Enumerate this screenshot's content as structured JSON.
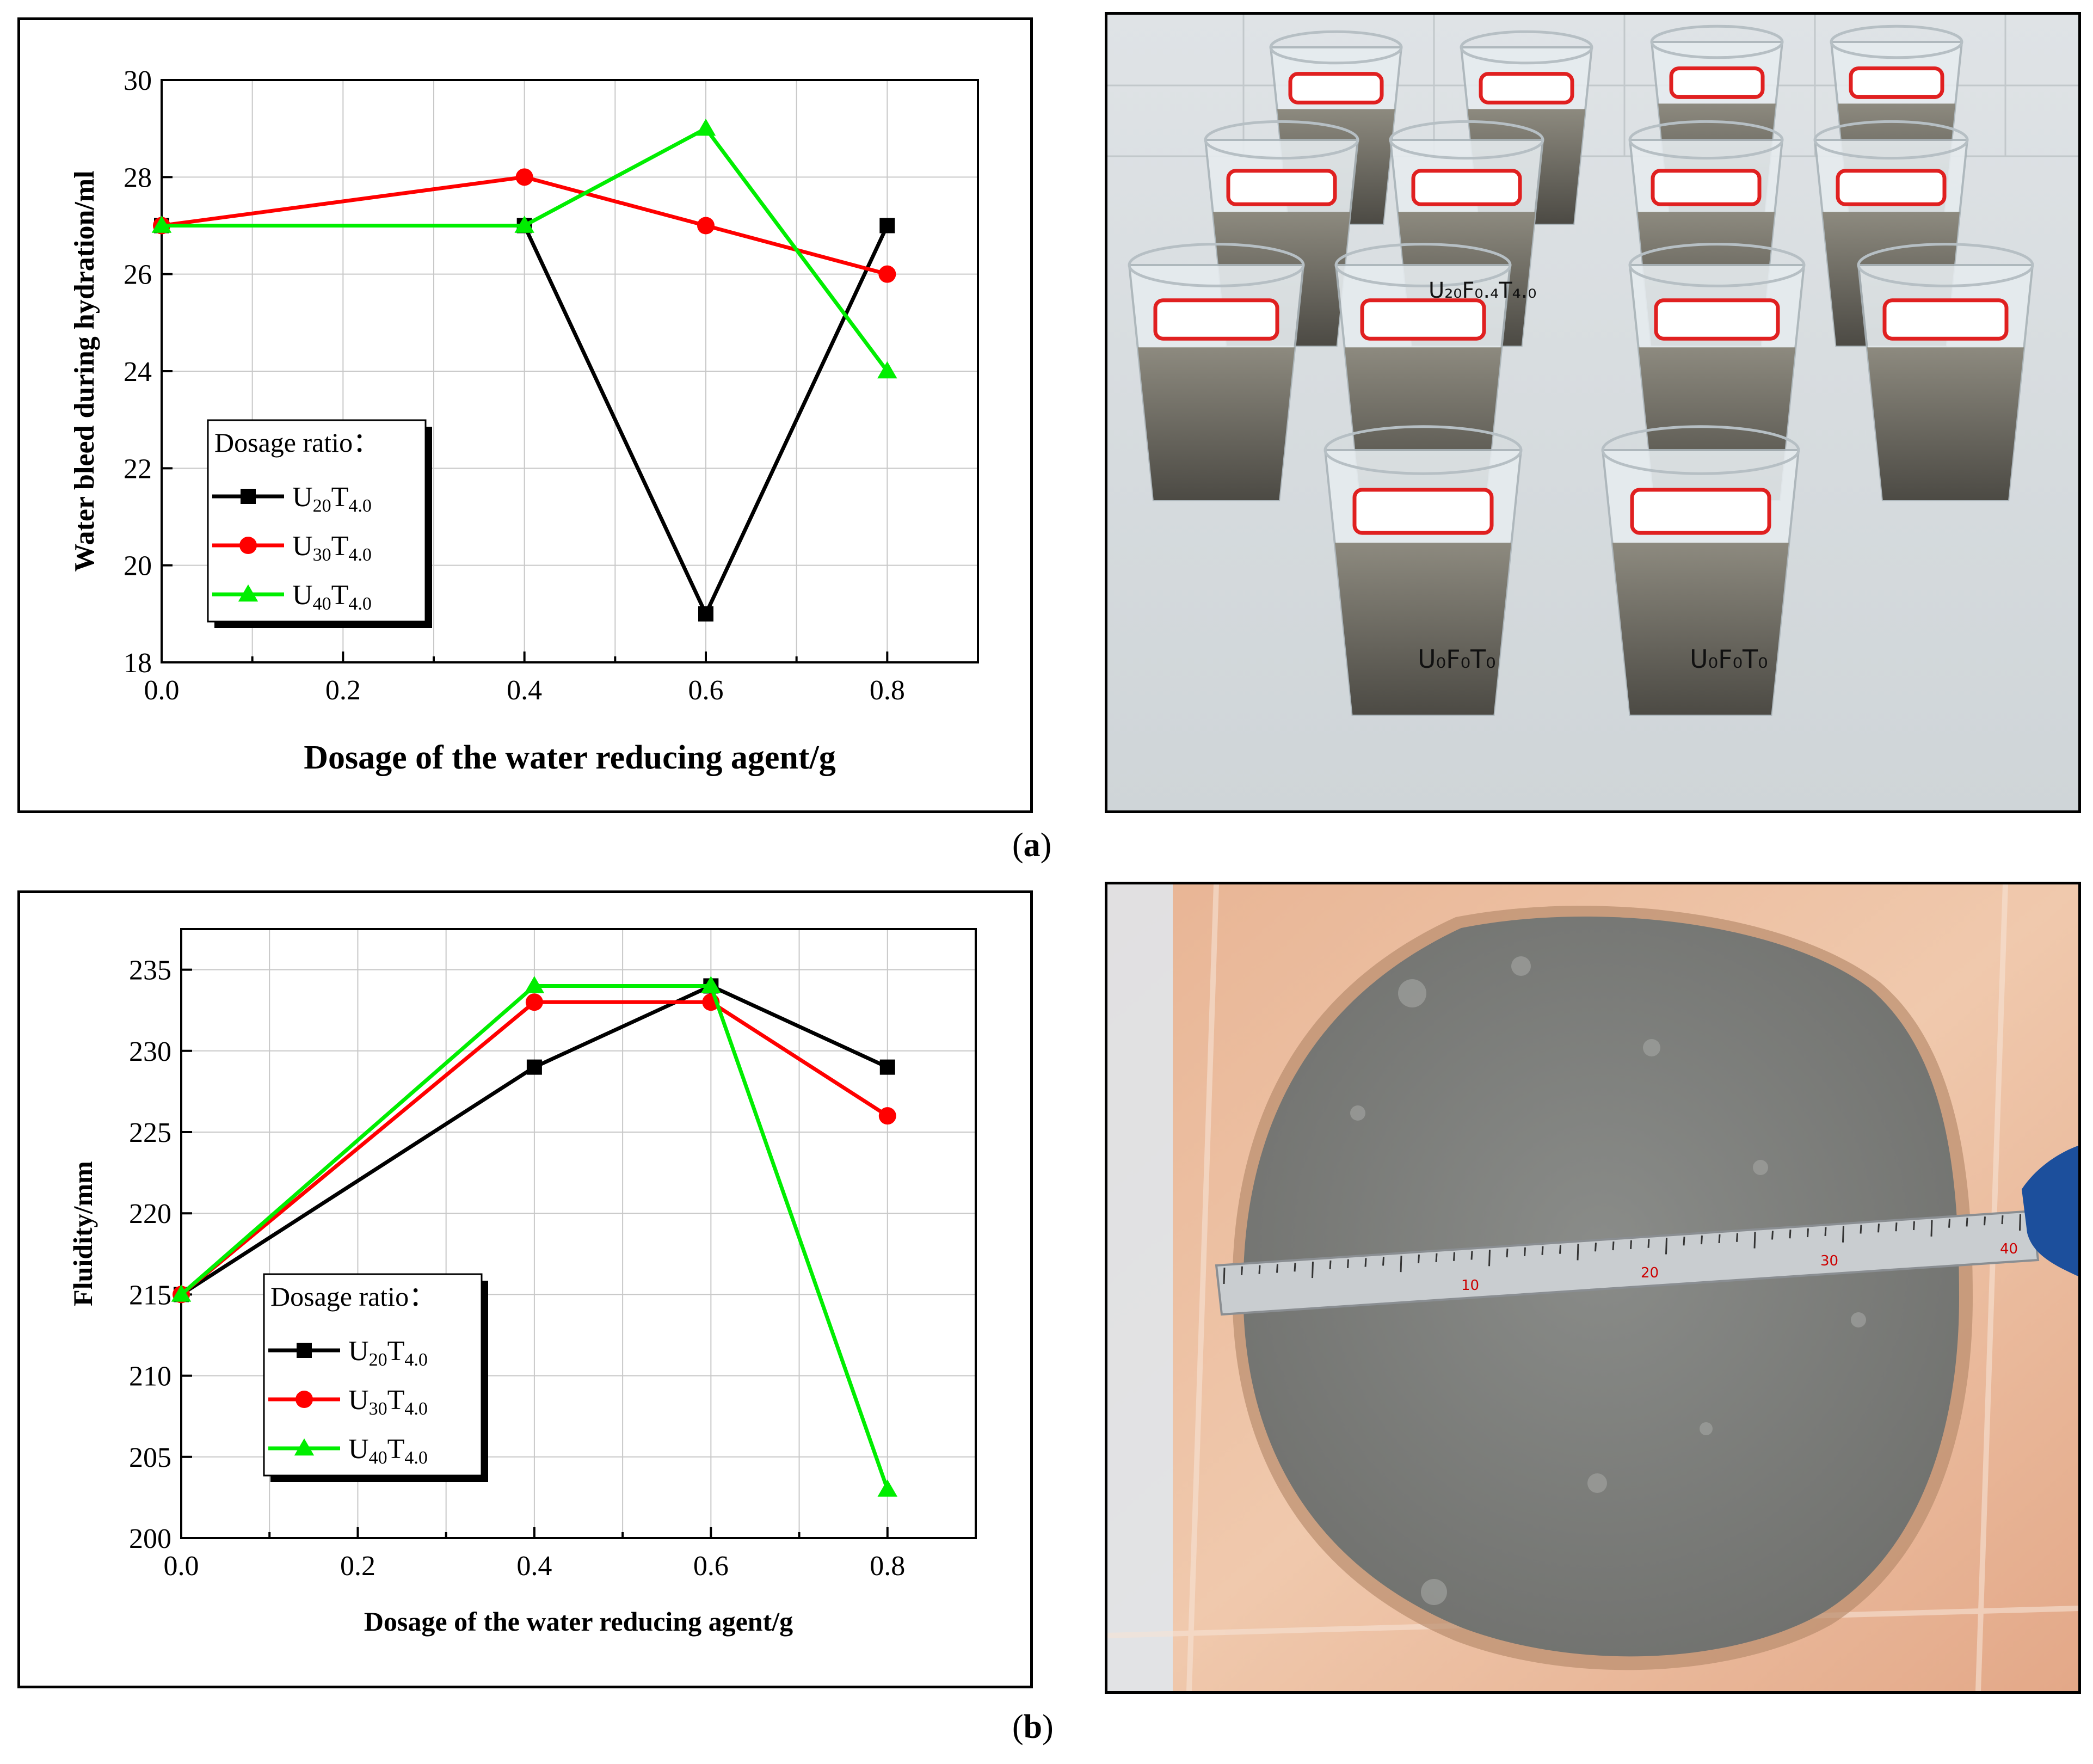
{
  "figure": {
    "panel_a_caption": "a",
    "panel_b_caption": "b",
    "photo_a_cup_labels": [
      "U₂₀F₀.₄T₄.₀",
      "U₀F₀T₀"
    ],
    "photo_b_ruler_numbers": [
      "10",
      "20",
      "30",
      "40"
    ]
  },
  "colors": {
    "U20T4.0": "#000000",
    "U30T4.0": "#ff0000",
    "U40T4.0": "#00ee00",
    "grid": "#c8c8c8"
  },
  "chart_data": [
    {
      "type": "line",
      "xlabel": "Dosage of the water reducing agent/g",
      "ylabel": "Water bleed during hydration/ml",
      "xlim": [
        0.0,
        0.9
      ],
      "ylim": [
        18,
        30
      ],
      "xticks": [
        "0.0",
        "0.2",
        "0.4",
        "0.6",
        "0.8"
      ],
      "yticks": [
        "18",
        "20",
        "22",
        "24",
        "26",
        "28",
        "30"
      ],
      "grid": true,
      "legend": {
        "title": "Dosage ratio：",
        "placement": "lower-left"
      },
      "series": [
        {
          "name": "U20T4.0",
          "label_main": "U",
          "label_sub1": "20",
          "label_mid": "T",
          "label_sub2": "4.0",
          "marker": "square",
          "color": "#000000",
          "x": [
            0.0,
            0.4,
            0.6,
            0.8
          ],
          "y": [
            27,
            27,
            19,
            27
          ]
        },
        {
          "name": "U30T4.0",
          "label_main": "U",
          "label_sub1": "30",
          "label_mid": "T",
          "label_sub2": "4.0",
          "marker": "circle",
          "color": "#ff0000",
          "x": [
            0.0,
            0.4,
            0.6,
            0.8
          ],
          "y": [
            27,
            28,
            27,
            26
          ]
        },
        {
          "name": "U40T4.0",
          "label_main": "U",
          "label_sub1": "40",
          "label_mid": "T",
          "label_sub2": "4.0",
          "marker": "triangle",
          "color": "#00ee00",
          "x": [
            0.0,
            0.4,
            0.6,
            0.8
          ],
          "y": [
            27,
            27,
            29,
            24
          ]
        }
      ]
    },
    {
      "type": "line",
      "xlabel": "Dosage of the water reducing agent/g",
      "ylabel": "Fluidity/mm",
      "xlim": [
        0.0,
        0.9
      ],
      "ylim": [
        200,
        237.5
      ],
      "xticks": [
        "0.0",
        "0.2",
        "0.4",
        "0.6",
        "0.8"
      ],
      "yticks": [
        "200",
        "205",
        "210",
        "215",
        "220",
        "225",
        "230",
        "235"
      ],
      "grid": true,
      "legend": {
        "title": "Dosage ratio：",
        "placement": "lower-left"
      },
      "series": [
        {
          "name": "U20T4.0",
          "label_main": "U",
          "label_sub1": "20",
          "label_mid": "T",
          "label_sub2": "4.0",
          "marker": "square",
          "color": "#000000",
          "x": [
            0.0,
            0.4,
            0.6,
            0.8
          ],
          "y": [
            215,
            229,
            234,
            229
          ]
        },
        {
          "name": "U30T4.0",
          "label_main": "U",
          "label_sub1": "30",
          "label_mid": "T",
          "label_sub2": "4.0",
          "marker": "circle",
          "color": "#ff0000",
          "x": [
            0.0,
            0.4,
            0.6,
            0.8
          ],
          "y": [
            215,
            233,
            233,
            226
          ]
        },
        {
          "name": "U40T4.0",
          "label_main": "U",
          "label_sub1": "40",
          "label_mid": "T",
          "label_sub2": "4.0",
          "marker": "triangle",
          "color": "#00ee00",
          "x": [
            0.0,
            0.4,
            0.6,
            0.8
          ],
          "y": [
            215,
            234,
            234,
            203
          ]
        }
      ]
    }
  ]
}
